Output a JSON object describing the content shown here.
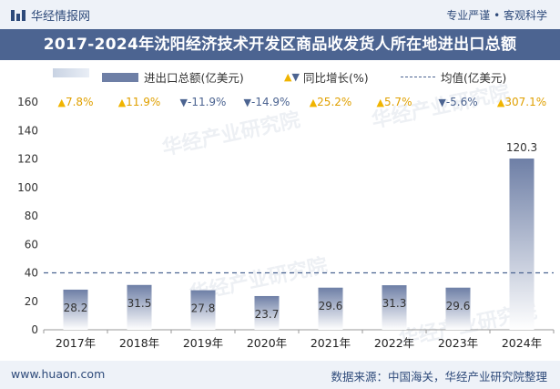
{
  "header": {
    "brand": "华经情报网",
    "tagline": "专业严谨 • 客观科学",
    "title": "2017-2024年沈阳经济技术开发区商品收发货人所在地进出口总额"
  },
  "legend": {
    "bar": "进出口总额(亿美元)",
    "growth": "同比增长(%)",
    "avg": "均值(亿美元)"
  },
  "footer": {
    "url": "www.huaon.com",
    "source": "数据来源：中国海关，华经产业研究院整理"
  },
  "colors": {
    "bar_top": "#6e7fa6",
    "bar_bottom": "#ffffff",
    "up": "#f0b400",
    "down": "#4c6491",
    "avg": "#4c6491"
  },
  "chart_data": {
    "type": "bar",
    "title": "2017-2024年沈阳经济技术开发区商品收发货人所在地进出口总额",
    "categories": [
      "2017年",
      "2018年",
      "2019年",
      "2020年",
      "2021年",
      "2022年",
      "2023年",
      "2024年"
    ],
    "series": [
      {
        "name": "进出口总额(亿美元)",
        "values": [
          28.2,
          31.5,
          27.8,
          23.7,
          29.6,
          31.3,
          29.6,
          120.3
        ]
      }
    ],
    "value_labels": [
      "28.2",
      "31.5",
      "27.8",
      "23.7",
      "29.6",
      "31.3",
      "29.6",
      "120.3"
    ],
    "growth": [
      7.8,
      11.9,
      -11.9,
      -14.9,
      25.2,
      5.7,
      -5.6,
      307.1
    ],
    "growth_labels": [
      "7.8%",
      "11.9%",
      "-11.9%",
      "-14.9%",
      "25.2%",
      "5.7%",
      "-5.6%",
      "307.1%"
    ],
    "average": 40,
    "ylim": [
      0,
      160
    ],
    "yticks": [
      0,
      20,
      40,
      60,
      80,
      100,
      120,
      140,
      160
    ],
    "xlabel": "",
    "ylabel": ""
  }
}
